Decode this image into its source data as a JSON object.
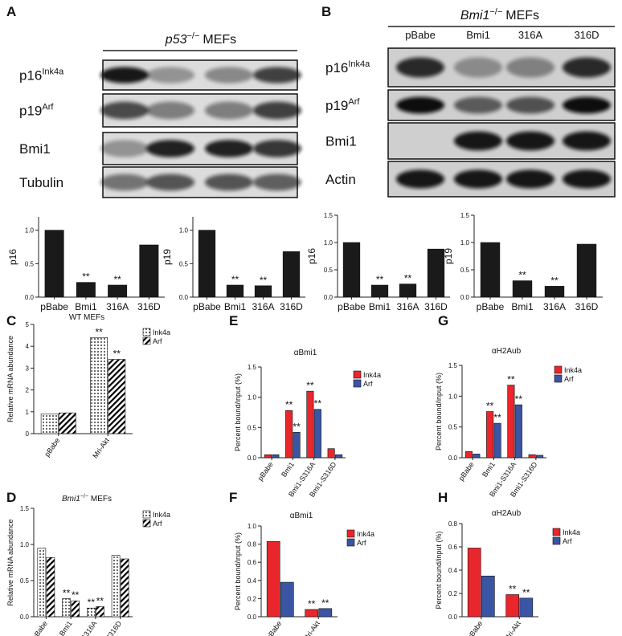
{
  "blots": [
    {
      "panel": "A",
      "title_gene": "p53",
      "title_sup": "−/−",
      "title_rest": "MEFs",
      "lanes": [
        "pBabe",
        "Bmi1",
        "316A",
        "316D"
      ],
      "rows": [
        {
          "name": "p16",
          "sup": "Ink4a"
        },
        {
          "name": "p19",
          "sup": "Arf"
        },
        {
          "name": "Bmi1"
        },
        {
          "name": "Tubulin"
        }
      ]
    },
    {
      "panel": "B",
      "title_gene": "Bmi1",
      "title_sup": "−/−",
      "title_rest": "MEFs",
      "lanes": [
        "pBabe",
        "Bmi1",
        "316A",
        "316D"
      ],
      "rows": [
        {
          "name": "p16",
          "sup": "Ink4a"
        },
        {
          "name": "p19",
          "sup": "Arf"
        },
        {
          "name": "Bmi1"
        },
        {
          "name": "Actin"
        }
      ]
    }
  ],
  "chart_data": [
    {
      "type": "bar",
      "ylabel": "p16",
      "categories": [
        "pBabe",
        "Bmi1",
        "316A",
        "316D"
      ],
      "values": [
        1.0,
        0.22,
        0.18,
        0.78
      ],
      "color": "#1a1a1a",
      "ylim": [
        0,
        1.2
      ],
      "yticks": [
        {
          "value": 0,
          "label": "0.0"
        },
        0.5,
        {
          "value": 1,
          "label": "1.0"
        }
      ],
      "annotations": [
        {
          "text": "**",
          "category": 1
        },
        {
          "text": "**",
          "category": 2
        }
      ]
    },
    {
      "type": "bar",
      "ylabel": "p19",
      "categories": [
        "pBabe",
        "Bmi1",
        "316A",
        "316D"
      ],
      "values": [
        1.0,
        0.18,
        0.17,
        0.68
      ],
      "color": "#1a1a1a",
      "ylim": [
        0,
        1.2
      ],
      "yticks": [
        {
          "value": 0,
          "label": "0.0"
        },
        0.5,
        {
          "value": 1,
          "label": "1.0"
        }
      ],
      "annotations": [
        {
          "text": "**",
          "category": 1
        },
        {
          "text": "**",
          "category": 2
        }
      ]
    },
    {
      "type": "bar",
      "ylabel": "p16",
      "categories": [
        "pBabe",
        "Bmi1",
        "316A",
        "316D"
      ],
      "values": [
        1.0,
        0.22,
        0.24,
        0.88
      ],
      "color": "#1a1a1a",
      "ylim": [
        0,
        1.5
      ],
      "yticks": [
        {
          "value": 0,
          "label": "0.0"
        },
        0.5,
        {
          "value": 1,
          "label": "1.0"
        },
        1.5
      ],
      "annotations": [
        {
          "text": "**",
          "category": 1
        },
        {
          "text": "**",
          "category": 2
        }
      ]
    },
    {
      "type": "bar",
      "ylabel": "p19",
      "categories": [
        "pBabe",
        "Bmi1",
        "316A",
        "316D"
      ],
      "values": [
        1.0,
        0.3,
        0.2,
        0.97
      ],
      "color": "#1a1a1a",
      "ylim": [
        0,
        1.5
      ],
      "yticks": [
        {
          "value": 0,
          "label": "0.0"
        },
        0.5,
        {
          "value": 1,
          "label": "1.0"
        },
        1.5
      ],
      "annotations": [
        {
          "text": "**",
          "category": 1
        },
        {
          "text": "**",
          "category": 2
        }
      ]
    },
    {
      "type": "bar",
      "panel": "C",
      "title": "WT MEFs",
      "ylabel": "Relative mRNA abundance",
      "categories": [
        "pBabe",
        "Mri-Akt"
      ],
      "series": [
        {
          "name": "Ink4a",
          "color": "#000000",
          "pattern": "dots",
          "values": [
            0.9,
            4.4
          ]
        },
        {
          "name": "Arf",
          "color": "#000000",
          "pattern": "stripes",
          "values": [
            0.95,
            3.4
          ]
        }
      ],
      "ylim": [
        0,
        5
      ],
      "yticks": [
        0,
        1,
        2,
        3,
        4,
        5
      ],
      "annotations": [
        {
          "text": "**",
          "category": 1,
          "series": 0
        },
        {
          "text": "**",
          "category": 1,
          "series": 1
        }
      ]
    },
    {
      "type": "bar",
      "panel": "D",
      "title": "Bmi1",
      "title_sup": "−/−",
      "title_rest": "MEFs",
      "ylabel": "Relative mRNA abundance",
      "categories": [
        "pBabe",
        "Bmi1",
        "Bmi1-S316A",
        "Bmi1-S316D"
      ],
      "series": [
        {
          "name": "Ink4a",
          "color": "#000000",
          "pattern": "dots",
          "values": [
            0.95,
            0.25,
            0.12,
            0.85
          ]
        },
        {
          "name": "Arf",
          "color": "#000000",
          "pattern": "stripes",
          "values": [
            0.82,
            0.22,
            0.14,
            0.8
          ]
        }
      ],
      "ylim": [
        0,
        1.5
      ],
      "yticks": [
        {
          "value": 0,
          "label": "0.0"
        },
        0.5,
        {
          "value": 1,
          "label": "1.0"
        },
        1.5
      ],
      "annotations": [
        {
          "text": "**",
          "category": 1,
          "series": 0
        },
        {
          "text": "**",
          "category": 1,
          "series": 1
        },
        {
          "text": "**",
          "category": 2,
          "series": 0
        },
        {
          "text": "**",
          "category": 2,
          "series": 1
        }
      ]
    },
    {
      "type": "bar",
      "panel": "E",
      "title": "αBmi1",
      "ylabel": "Percent bound/input (%)",
      "categories": [
        "pBabe",
        "Bmi1",
        "Bmi1-S316A",
        "Bmi1-S316D"
      ],
      "series": [
        {
          "name": "Ink4a",
          "color": "#e8262b",
          "values": [
            0.05,
            0.78,
            1.1,
            0.15
          ]
        },
        {
          "name": "Arf",
          "color": "#3a55a4",
          "values": [
            0.05,
            0.42,
            0.8,
            0.05
          ]
        }
      ],
      "ylim": [
        0,
        1.5
      ],
      "yticks": [
        {
          "value": 0,
          "label": "0.0"
        },
        0.5,
        {
          "value": 1,
          "label": "1.0"
        },
        1.5
      ],
      "annotations": [
        {
          "text": "**",
          "category": 1,
          "series": 0
        },
        {
          "text": "**",
          "category": 1,
          "series": 1
        },
        {
          "text": "**",
          "category": 2,
          "series": 0
        },
        {
          "text": "**",
          "category": 2,
          "series": 1
        }
      ]
    },
    {
      "type": "bar",
      "panel": "F",
      "title": "αBmi1",
      "ylabel": "Percent bound/input (%)",
      "categories": [
        "pBabe",
        "Mri-Akt"
      ],
      "series": [
        {
          "name": "Ink4a",
          "color": "#e8262b",
          "values": [
            0.83,
            0.08
          ]
        },
        {
          "name": "Arf",
          "color": "#3a55a4",
          "values": [
            0.38,
            0.09
          ]
        }
      ],
      "ylim": [
        0,
        1.0
      ],
      "yticks": [
        {
          "value": 0,
          "label": "0.0"
        },
        0.2,
        0.4,
        0.6,
        0.8,
        {
          "value": 1,
          "label": "1.0"
        }
      ],
      "annotations": [
        {
          "text": "**",
          "category": 1,
          "series": 0
        },
        {
          "text": "**",
          "category": 1,
          "series": 1
        }
      ]
    },
    {
      "type": "bar",
      "panel": "G",
      "title": "αH2Aub",
      "ylabel": "Percent bound/input (%)",
      "categories": [
        "pBabe",
        "Bmi1",
        "Bmi1-S316A",
        "Bmi1-S316D"
      ],
      "series": [
        {
          "name": "Ink4a",
          "color": "#e8262b",
          "values": [
            0.1,
            0.75,
            1.18,
            0.05
          ]
        },
        {
          "name": "Arf",
          "color": "#3a55a4",
          "values": [
            0.06,
            0.56,
            0.86,
            0.04
          ]
        }
      ],
      "ylim": [
        0,
        1.5
      ],
      "yticks": [
        {
          "value": 0,
          "label": "0.0"
        },
        0.5,
        {
          "value": 1,
          "label": "1.0"
        },
        1.5
      ],
      "annotations": [
        {
          "text": "**",
          "category": 1,
          "series": 0
        },
        {
          "text": "**",
          "category": 1,
          "series": 1
        },
        {
          "text": "**",
          "category": 2,
          "series": 0
        },
        {
          "text": "**",
          "category": 2,
          "series": 1
        }
      ]
    },
    {
      "type": "bar",
      "panel": "H",
      "title": "αH2Aub",
      "ylabel": "Percent bound/input (%)",
      "categories": [
        "pBabe",
        "Mri-Akt"
      ],
      "series": [
        {
          "name": "Ink4a",
          "color": "#e8262b",
          "values": [
            0.59,
            0.19
          ]
        },
        {
          "name": "Arf",
          "color": "#3a55a4",
          "values": [
            0.35,
            0.16
          ]
        }
      ],
      "ylim": [
        0,
        0.8
      ],
      "yticks": [
        {
          "value": 0,
          "label": "0.0"
        },
        0.2,
        0.4,
        0.6,
        0.8
      ],
      "annotations": [
        {
          "text": "**",
          "category": 1,
          "series": 0
        },
        {
          "text": "**",
          "category": 1,
          "series": 1
        }
      ]
    }
  ]
}
